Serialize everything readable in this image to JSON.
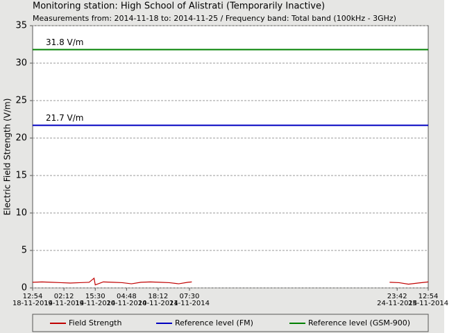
{
  "chart_data": {
    "type": "line",
    "title": "Monitoring station: High School of Alistrati (Temporarily Inactive)",
    "subtitle": "Measurements from: 2014-11-18 to: 2014-11-25 / Frequency band: Total band (100kHz - 3GHz)",
    "y_label": "Electric Field Strength (V/m)",
    "x": [
      "2014-11-18 12:54",
      "2014-11-18 16:54",
      "2014-11-18 20:54",
      "2014-11-19 00:54",
      "2014-11-19 04:54",
      "2014-11-19 08:54",
      "2014-11-19 12:54",
      "2014-11-19 15:00",
      "2014-11-19 15:30",
      "2014-11-19 18:54",
      "2014-11-19 22:54",
      "2014-11-20 02:54",
      "2014-11-20 06:54",
      "2014-11-20 10:54",
      "2014-11-20 14:54",
      "2014-11-20 18:54",
      "2014-11-20 22:54",
      "2014-11-21 02:54",
      "2014-11-21 06:54",
      "2014-11-21 08:30",
      "2014-11-22 12:00",
      "2014-11-24 20:30",
      "2014-11-25 00:30",
      "2014-11-25 04:30",
      "2014-11-25 08:30",
      "2014-11-25 12:54"
    ],
    "series": [
      {
        "name": "Field Strength",
        "color": "#c00000",
        "values": [
          0.75,
          0.8,
          0.75,
          0.7,
          0.65,
          0.7,
          0.75,
          1.3,
          0.4,
          0.8,
          0.75,
          0.7,
          0.55,
          0.75,
          0.8,
          0.75,
          0.7,
          0.55,
          0.75,
          0.8,
          null,
          0.75,
          0.7,
          0.5,
          0.65,
          0.8
        ]
      }
    ],
    "reference_lines": [
      {
        "name": "Reference level (FM)",
        "value": 21.7,
        "value_label": "21.7 V/m",
        "color": "#0000c0"
      },
      {
        "name": "Reference level (GSM-900)",
        "value": 31.8,
        "value_label": "31.8 V/m",
        "color": "#008000"
      }
    ],
    "xlim": [
      "2014-11-18 12:54",
      "2014-11-25 12:54"
    ],
    "xticks": [
      {
        "value": "2014-11-18 12:54",
        "label": "12:54\n18-11-2014"
      },
      {
        "value": "2014-11-19 02:12",
        "label": "02:12\n19-11-2014"
      },
      {
        "value": "2014-11-19 15:30",
        "label": "15:30\n19-11-2014"
      },
      {
        "value": "2014-11-20 04:48",
        "label": "04:48\n20-11-2014"
      },
      {
        "value": "2014-11-20 18:12",
        "label": "18:12\n20-11-2014"
      },
      {
        "value": "2014-11-21 07:30",
        "label": "07:30\n21-11-2014"
      },
      {
        "value": "2014-11-24 23:42",
        "label": "23:42\n24-11-2014"
      },
      {
        "value": "2014-11-25 12:54",
        "label": "12:54\n25-11-2014"
      }
    ],
    "ylim": [
      0,
      35
    ],
    "yticks": [
      0,
      5,
      10,
      15,
      20,
      25,
      30,
      35
    ],
    "grid": true
  }
}
